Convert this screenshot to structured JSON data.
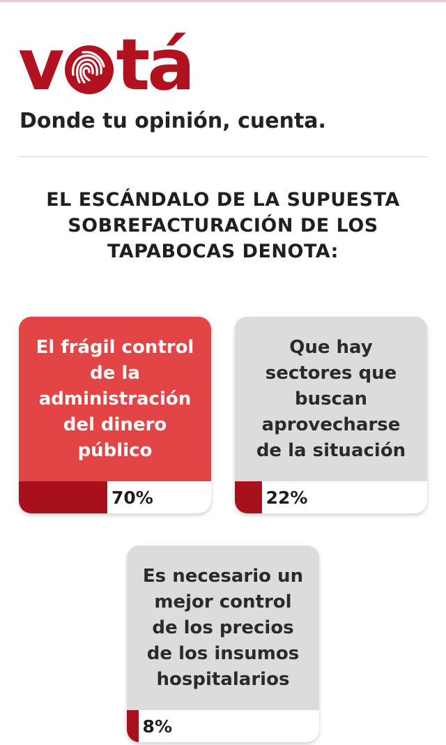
{
  "brand": {
    "logo_left": "v",
    "logo_right": "tá",
    "logo_word": "votá",
    "tagline": "Donde tu opinión, cuenta.",
    "color": "#b0121f"
  },
  "poll": {
    "question": "EL ESCÁNDALO DE LA SUPUESTA SOBREFACTURACIÓN DE LOS TAPABOCAS DENOTA:",
    "options": [
      {
        "text": "El frágil control\nde la\nadministración\ndel dinero\npúblico",
        "percent_label": "70%",
        "percent": 70,
        "selected": true
      },
      {
        "text": "Que hay\nsectores que\nbuscan\naprovecharse\nde la situación",
        "percent_label": "22%",
        "percent": 22,
        "selected": false
      },
      {
        "text": "Es necesario un\nmejor control\nde los precios\nde los insumos\nhospitalarios",
        "percent_label": "8%",
        "percent": 8,
        "selected": false
      }
    ]
  },
  "colors": {
    "selected_card": "#e34547",
    "plain_card": "#dcdcdc",
    "bar_fill": "#a8101c"
  }
}
